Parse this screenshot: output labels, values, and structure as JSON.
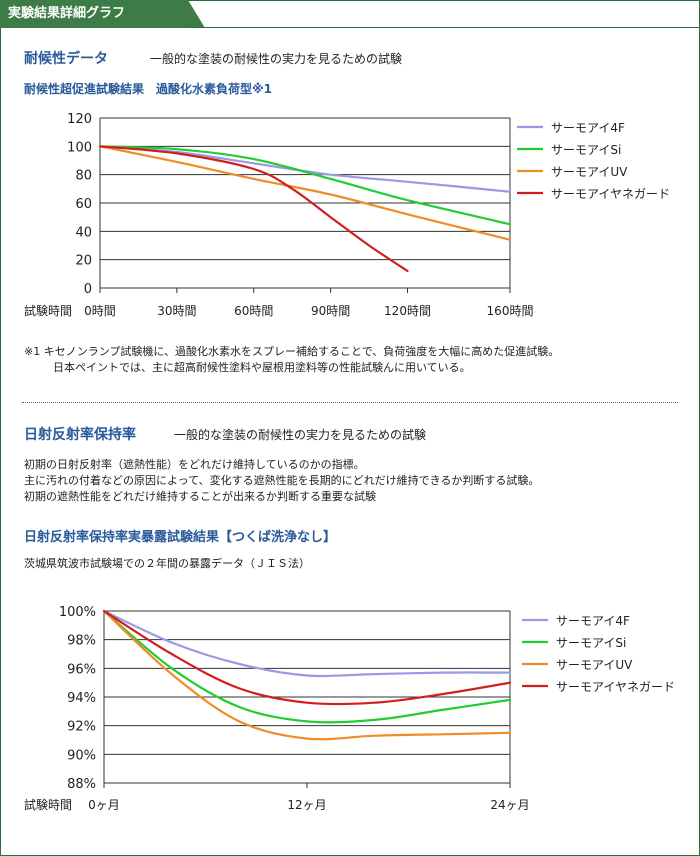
{
  "header_tab": "実験結果詳細グラフ",
  "section1": {
    "title": "耐候性データ",
    "description": "一般的な塗装の耐候性の実力を見るための試験",
    "chart_title": "耐候性超促進試験結果　過酸化水素負荷型※1",
    "note_line1": "※1 キセノンランプ試験機に、過酸化水素水をスプレー補給することで、負荷強度を大幅に高めた促進試験。",
    "note_line2": "日本ペイントでは、主に超高耐候性塗料や屋根用塗料等の性能試験んに用いている。"
  },
  "section2": {
    "title": "日射反射率保持率",
    "description": "一般的な塗装の耐候性の実力を見るための試験",
    "para_line1": "初期の日射反射率（遮熱性能）をどれだけ維持しているのかの指標。",
    "para_line2": "主に汚れの付着などの原因によって、変化する遮熱性能を長期的にどれだけ維持できるか判断する試験。",
    "para_line3": "初期の遮熱性能をどれだけ維持することが出来るか判断する重要な試験",
    "chart_title": "日射反射率保持率実暴露試験結果【つくば洗浄なし】",
    "chart_subtitle": "茨城県筑波市試験場での２年間の暴露データ（ＪＩＳ法）"
  },
  "chart_data": [
    {
      "type": "line",
      "title": "耐候性超促進試験結果　過酸化水素負荷型※1",
      "xlabel": "試験時間",
      "categories": [
        "0時間",
        "30時間",
        "60時間",
        "90時間",
        "120時間",
        "160時間"
      ],
      "x": [
        0,
        30,
        60,
        90,
        120,
        160
      ],
      "yticks": [
        "0",
        "20",
        "40",
        "60",
        "80",
        "100",
        "120"
      ],
      "ylim": [
        0,
        120
      ],
      "grid": true,
      "legend": "right",
      "series": [
        {
          "name": "サーモアイ4F",
          "color": "#9999e6",
          "x": [
            0,
            30,
            60,
            90,
            120,
            160
          ],
          "values": [
            100,
            96,
            88,
            80,
            75,
            68
          ]
        },
        {
          "name": "サーモアイSi",
          "color": "#22cc33",
          "x": [
            0,
            30,
            60,
            90,
            120,
            160
          ],
          "values": [
            100,
            98,
            91,
            77,
            62,
            45
          ]
        },
        {
          "name": "サーモアイUV",
          "color": "#f08c28",
          "x": [
            0,
            30,
            60,
            90,
            120,
            160
          ],
          "values": [
            100,
            89,
            77,
            66,
            52,
            34
          ]
        },
        {
          "name": "サーモアイヤネガード",
          "color": "#d21e1e",
          "x": [
            0,
            30,
            60,
            75,
            90,
            105,
            120
          ],
          "values": [
            100,
            95,
            84,
            70,
            50,
            30,
            12
          ]
        }
      ]
    },
    {
      "type": "line",
      "xlabel": "試験時間",
      "categories": [
        "0ヶ月",
        "12ヶ月",
        "24ヶ月"
      ],
      "x": [
        0,
        12,
        24
      ],
      "yticks": [
        "88%",
        "90%",
        "92%",
        "94%",
        "96%",
        "98%",
        "100%"
      ],
      "ylim": [
        88,
        100
      ],
      "grid": true,
      "legend": "right",
      "series": [
        {
          "name": "サーモアイ4F",
          "color": "#9999e6",
          "x": [
            0,
            4,
            8,
            12,
            16,
            20,
            24
          ],
          "values": [
            100,
            97.8,
            96.3,
            95.5,
            95.6,
            95.7,
            95.7
          ]
        },
        {
          "name": "サーモアイSi",
          "color": "#22cc33",
          "x": [
            0,
            4,
            8,
            12,
            16,
            20,
            24
          ],
          "values": [
            100,
            96,
            93.3,
            92.3,
            92.4,
            93.1,
            93.8
          ]
        },
        {
          "name": "サーモアイUV",
          "color": "#f08c28",
          "x": [
            0,
            4,
            8,
            12,
            16,
            20,
            24
          ],
          "values": [
            100,
            95.6,
            92.3,
            91.1,
            91.3,
            91.4,
            91.5
          ]
        },
        {
          "name": "サーモアイヤネガード",
          "color": "#d21e1e",
          "x": [
            0,
            4,
            8,
            12,
            16,
            20,
            24
          ],
          "values": [
            100,
            97,
            94.6,
            93.6,
            93.6,
            94.2,
            95.0
          ]
        }
      ]
    }
  ]
}
